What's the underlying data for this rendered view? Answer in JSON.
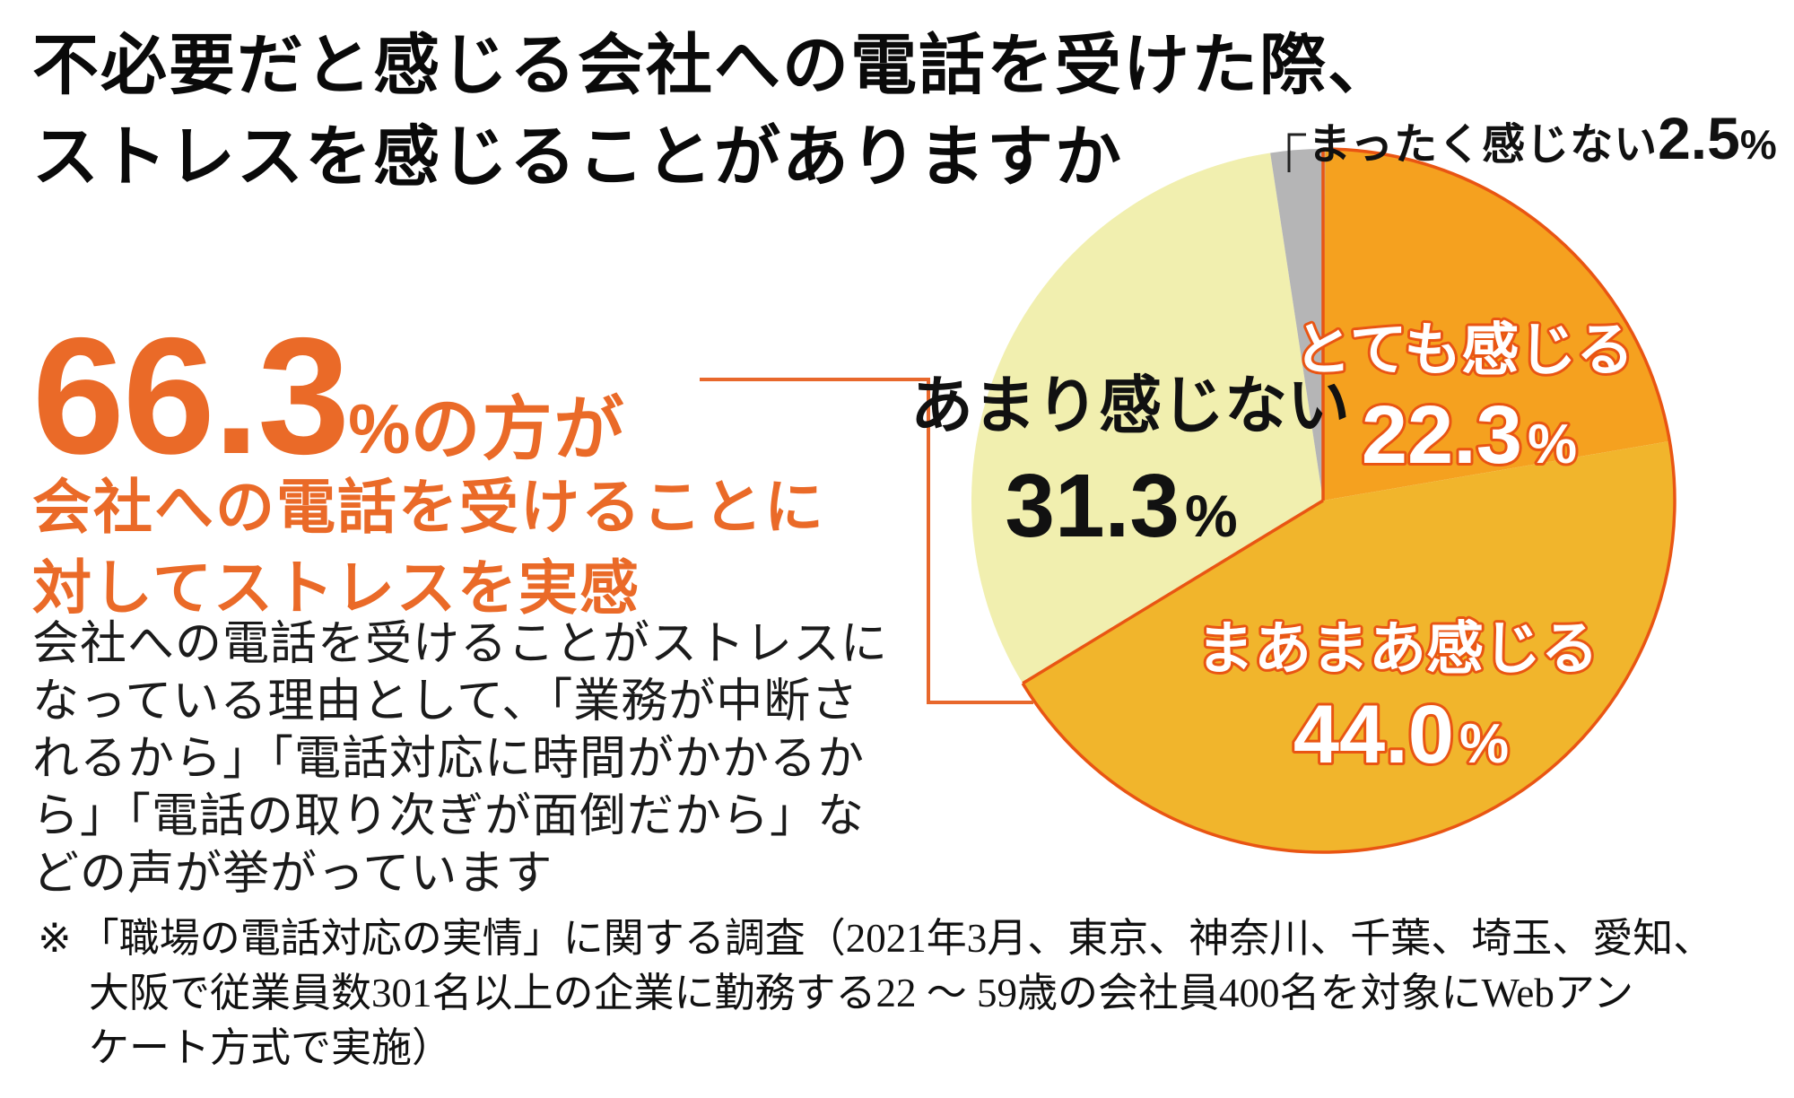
{
  "title": {
    "line1": "不必要だと感じる会社への電話を受けた際、",
    "line2": "ストレスを感じることがありますか"
  },
  "highlight": {
    "value": "66.3",
    "unit": "%",
    "suffix": "の方が",
    "line2": "会社への電話を受けることに",
    "line3": "対してストレスを実感",
    "color": "#EA6A28"
  },
  "body": {
    "lines": [
      "会社への電話を受けることがストレスに",
      "なっている理由として、「業務が中断さ",
      "れるから」「電話対応に時間がかかるか",
      "ら」「電話の取り次ぎが面倒だから」な",
      "どの声が挙がっています"
    ]
  },
  "footnote": {
    "marker": "※",
    "lines": [
      "「職場の電話対応の実情」に関する調査（2021年3月、東京、神奈川、千葉、埼玉、愛知、",
      "大阪で従業員数301名以上の企業に勤務する22 ～ 59歳の会社員400名を対象にWebアン",
      "ケート方式で実施）"
    ]
  },
  "chart_data": {
    "type": "pie",
    "labels": [
      "とても感じる",
      "まあまあ感じる",
      "あまり感じない",
      "まったく感じない"
    ],
    "values": [
      22.3,
      44.0,
      31.3,
      2.5
    ],
    "display_values": [
      "22.3",
      "44.0",
      "31.3",
      "2.5"
    ],
    "unit": "%",
    "colors": [
      "#F5A11F",
      "#F1B52C",
      "#F1EFAF",
      "#B5B5B6"
    ],
    "label_text_colors": [
      "#FFFFFF",
      "#FFFFFF",
      "#111111",
      "#111111"
    ],
    "stroke_color": "#E95513",
    "start_angle_deg": 0,
    "direction": "clockwise",
    "legend": "none"
  }
}
